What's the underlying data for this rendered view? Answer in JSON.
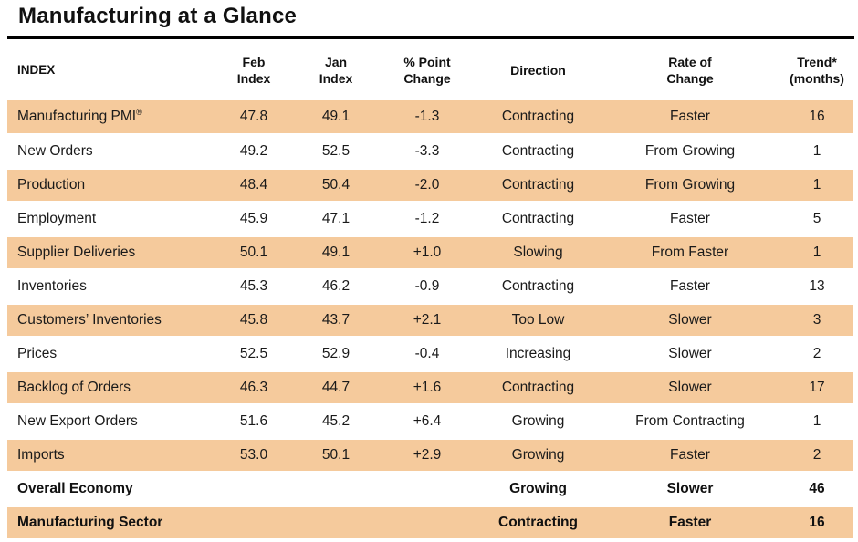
{
  "title": "Manufacturing at a Glance",
  "colors": {
    "band": "#f5ca9c",
    "rule": "#000000",
    "text": "#1a1a1a"
  },
  "table": {
    "headers": {
      "index": "INDEX",
      "feb": "Feb\nIndex",
      "jan": "Jan\nIndex",
      "change": "% Point\nChange",
      "direction": "Direction",
      "rate": "Rate of\nChange",
      "trend": "Trend*\n(months)"
    },
    "rows": [
      {
        "index": "Manufacturing PMI",
        "index_suffix": "®",
        "feb": "47.8",
        "jan": "49.1",
        "change": "-1.3",
        "direction": "Contracting",
        "rate": "Faster",
        "trend": "16",
        "shaded": true,
        "bold": false
      },
      {
        "index": "New Orders",
        "feb": "49.2",
        "jan": "52.5",
        "change": "-3.3",
        "direction": "Contracting",
        "rate": "From Growing",
        "trend": "1",
        "shaded": false,
        "bold": false
      },
      {
        "index": "Production",
        "feb": "48.4",
        "jan": "50.4",
        "change": "-2.0",
        "direction": "Contracting",
        "rate": "From Growing",
        "trend": "1",
        "shaded": true,
        "bold": false
      },
      {
        "index": "Employment",
        "feb": "45.9",
        "jan": "47.1",
        "change": "-1.2",
        "direction": "Contracting",
        "rate": "Faster",
        "trend": "5",
        "shaded": false,
        "bold": false
      },
      {
        "index": "Supplier Deliveries",
        "feb": "50.1",
        "jan": "49.1",
        "change": "+1.0",
        "direction": "Slowing",
        "rate": "From Faster",
        "trend": "1",
        "shaded": true,
        "bold": false
      },
      {
        "index": "Inventories",
        "feb": "45.3",
        "jan": "46.2",
        "change": "-0.9",
        "direction": "Contracting",
        "rate": "Faster",
        "trend": "13",
        "shaded": false,
        "bold": false
      },
      {
        "index": "Customers’ Inventories",
        "feb": "45.8",
        "jan": "43.7",
        "change": "+2.1",
        "direction": "Too Low",
        "rate": "Slower",
        "trend": "3",
        "shaded": true,
        "bold": false
      },
      {
        "index": "Prices",
        "feb": "52.5",
        "jan": "52.9",
        "change": "-0.4",
        "direction": "Increasing",
        "rate": "Slower",
        "trend": "2",
        "shaded": false,
        "bold": false
      },
      {
        "index": "Backlog of Orders",
        "feb": "46.3",
        "jan": "44.7",
        "change": "+1.6",
        "direction": "Contracting",
        "rate": "Slower",
        "trend": "17",
        "shaded": true,
        "bold": false
      },
      {
        "index": "New Export Orders",
        "feb": "51.6",
        "jan": "45.2",
        "change": "+6.4",
        "direction": "Growing",
        "rate": "From Contracting",
        "trend": "1",
        "shaded": false,
        "bold": false
      },
      {
        "index": "Imports",
        "feb": "53.0",
        "jan": "50.1",
        "change": "+2.9",
        "direction": "Growing",
        "rate": "Faster",
        "trend": "2",
        "shaded": true,
        "bold": false
      },
      {
        "index": "Overall Economy",
        "feb": "",
        "jan": "",
        "change": "",
        "direction": "Growing",
        "rate": "Slower",
        "trend": "46",
        "shaded": false,
        "bold": true
      },
      {
        "index": "Manufacturing Sector",
        "feb": "",
        "jan": "",
        "change": "",
        "direction": "Contracting",
        "rate": "Faster",
        "trend": "16",
        "shaded": true,
        "bold": true
      }
    ]
  }
}
